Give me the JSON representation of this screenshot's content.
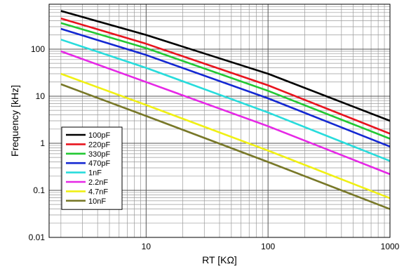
{
  "chart_data": {
    "type": "line",
    "xlabel": "RT [KΩ]",
    "ylabel": "Frequency [kHz]",
    "x_scale": "log",
    "y_scale": "log",
    "xlim": [
      1.6,
      1000
    ],
    "ylim": [
      0.01,
      900
    ],
    "x_ticks": [
      10,
      100,
      1000
    ],
    "x_tick_labels": [
      "10",
      "100",
      "1000"
    ],
    "y_ticks": [
      0.01,
      0.1,
      1,
      10,
      100
    ],
    "y_tick_labels": [
      "0.01",
      "0.1",
      "1",
      "10",
      "100"
    ],
    "grid": true,
    "legend_position": "bottom-left",
    "series": [
      {
        "name": "100pF",
        "color": "#000000",
        "x": [
          2,
          10,
          100,
          1000
        ],
        "y": [
          650,
          200,
          30,
          3
        ]
      },
      {
        "name": "220pF",
        "color": "#e8141e",
        "x": [
          2,
          10,
          100,
          1000
        ],
        "y": [
          450,
          130,
          17,
          1.6
        ]
      },
      {
        "name": "330pF",
        "color": "#22c832",
        "x": [
          2,
          10,
          100,
          1000
        ],
        "y": [
          360,
          105,
          13,
          1.25
        ]
      },
      {
        "name": "470pF",
        "color": "#1428d2",
        "x": [
          2,
          10,
          100,
          1000
        ],
        "y": [
          270,
          75,
          9,
          0.85
        ]
      },
      {
        "name": "1nF",
        "color": "#28dcdc",
        "x": [
          2,
          10,
          100,
          1000
        ],
        "y": [
          160,
          40,
          4.5,
          0.42
        ]
      },
      {
        "name": "2.2nF",
        "color": "#e628e6",
        "x": [
          2,
          10,
          100,
          1000
        ],
        "y": [
          90,
          20,
          2.3,
          0.22
        ]
      },
      {
        "name": "4.7nF",
        "color": "#f0f014",
        "x": [
          2,
          10,
          100,
          1000
        ],
        "y": [
          30,
          6.5,
          0.7,
          0.068
        ]
      },
      {
        "name": "10nF",
        "color": "#787828",
        "x": [
          2,
          10,
          100,
          1000
        ],
        "y": [
          18,
          3.8,
          0.4,
          0.04
        ]
      }
    ]
  }
}
